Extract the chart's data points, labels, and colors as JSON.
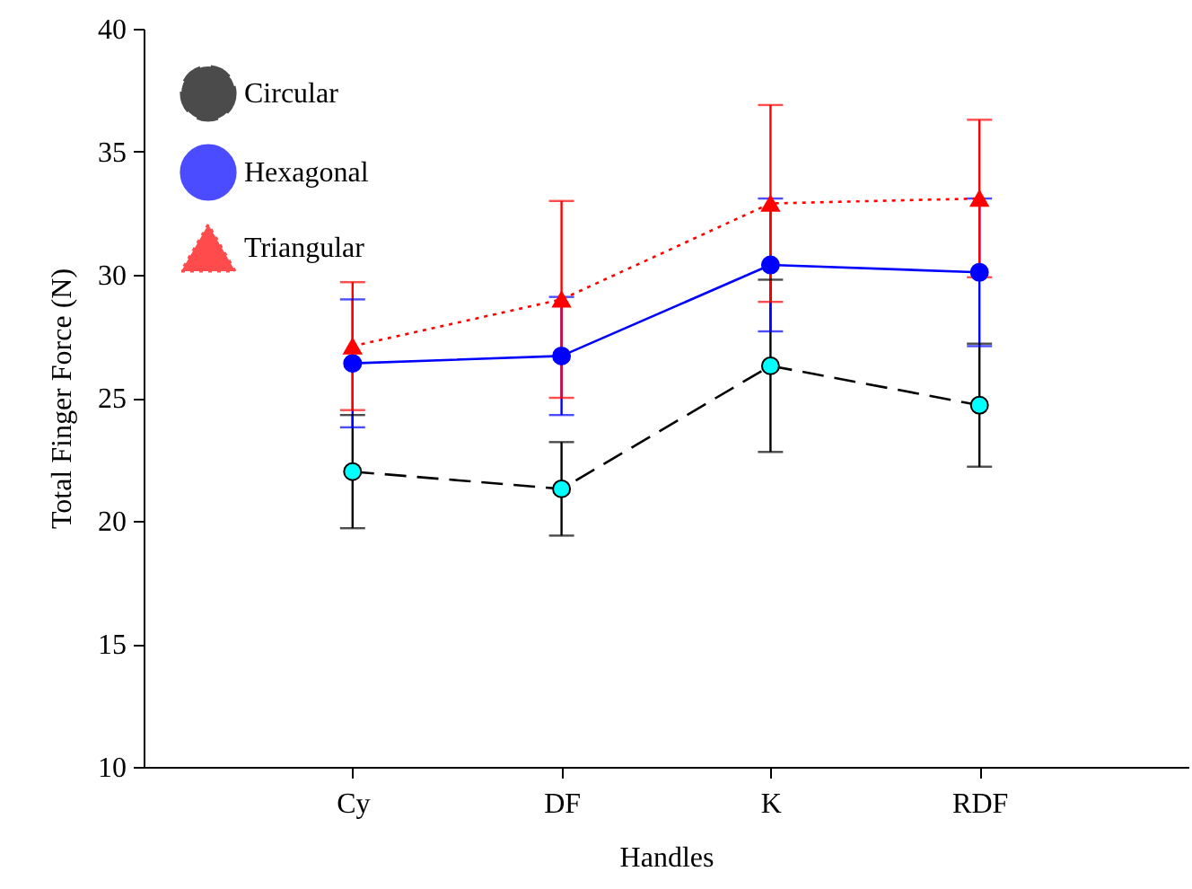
{
  "chart_data": {
    "type": "line",
    "xlabel": "Handles",
    "ylabel": "Total Finger Force (N)",
    "categories": [
      "Cy",
      "DF",
      "K",
      "RDF"
    ],
    "ylim": [
      10,
      40
    ],
    "yticks": [
      10,
      15,
      20,
      25,
      30,
      35,
      40
    ],
    "grid": false,
    "legend": "top left",
    "series": [
      {
        "name": "Circular",
        "color": "#000000",
        "colors": [
          "#00ffff",
          "#00ffff",
          "#00ffff",
          "#00ffff"
        ],
        "marker": "circle",
        "line_style": "dashed",
        "values": [
          22.0,
          21.3,
          26.3,
          24.7
        ],
        "errors": [
          2.3,
          1.9,
          3.5,
          2.5
        ]
      },
      {
        "name": "Hexagonal",
        "color": "#0000ff",
        "marker": "circle",
        "line_style": "solid",
        "values": [
          26.4,
          26.7,
          30.4,
          30.1
        ],
        "errors": [
          2.6,
          2.4,
          2.7,
          3.0
        ]
      },
      {
        "name": "Triangular",
        "color": "#ff0000",
        "marker": "triangle",
        "line_style": "dotted",
        "values": [
          27.1,
          29.0,
          32.9,
          33.1
        ],
        "errors": [
          2.6,
          4.0,
          4.0,
          3.2
        ]
      }
    ]
  }
}
